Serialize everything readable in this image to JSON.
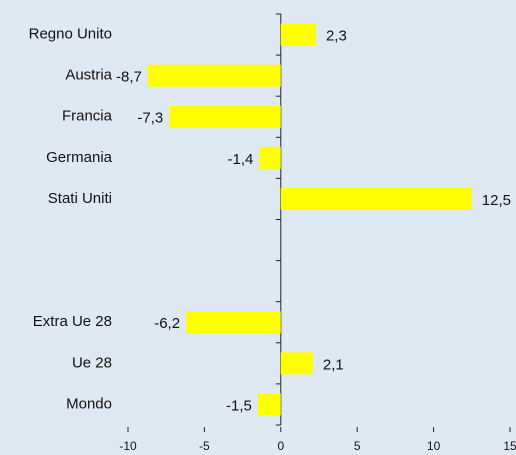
{
  "chart_data": {
    "type": "hbar",
    "categories": [
      "Regno Unito",
      "Austria",
      "Francia",
      "Germania",
      "Stati Uniti",
      null,
      null,
      "Extra Ue 28",
      "Ue 28",
      "Mondo"
    ],
    "values": [
      2.3,
      -8.7,
      -7.3,
      -1.4,
      12.5,
      null,
      null,
      -6.2,
      2.1,
      -1.5
    ],
    "value_labels": [
      "2,3",
      "-8,7",
      "-7,3",
      "-1,4",
      "12,5",
      null,
      null,
      "-6,2",
      "2,1",
      "-1,5"
    ],
    "color": "#ffff00",
    "xlim": [
      -10,
      15
    ],
    "xticks": [
      -10,
      -5,
      0,
      5,
      10,
      15
    ]
  }
}
